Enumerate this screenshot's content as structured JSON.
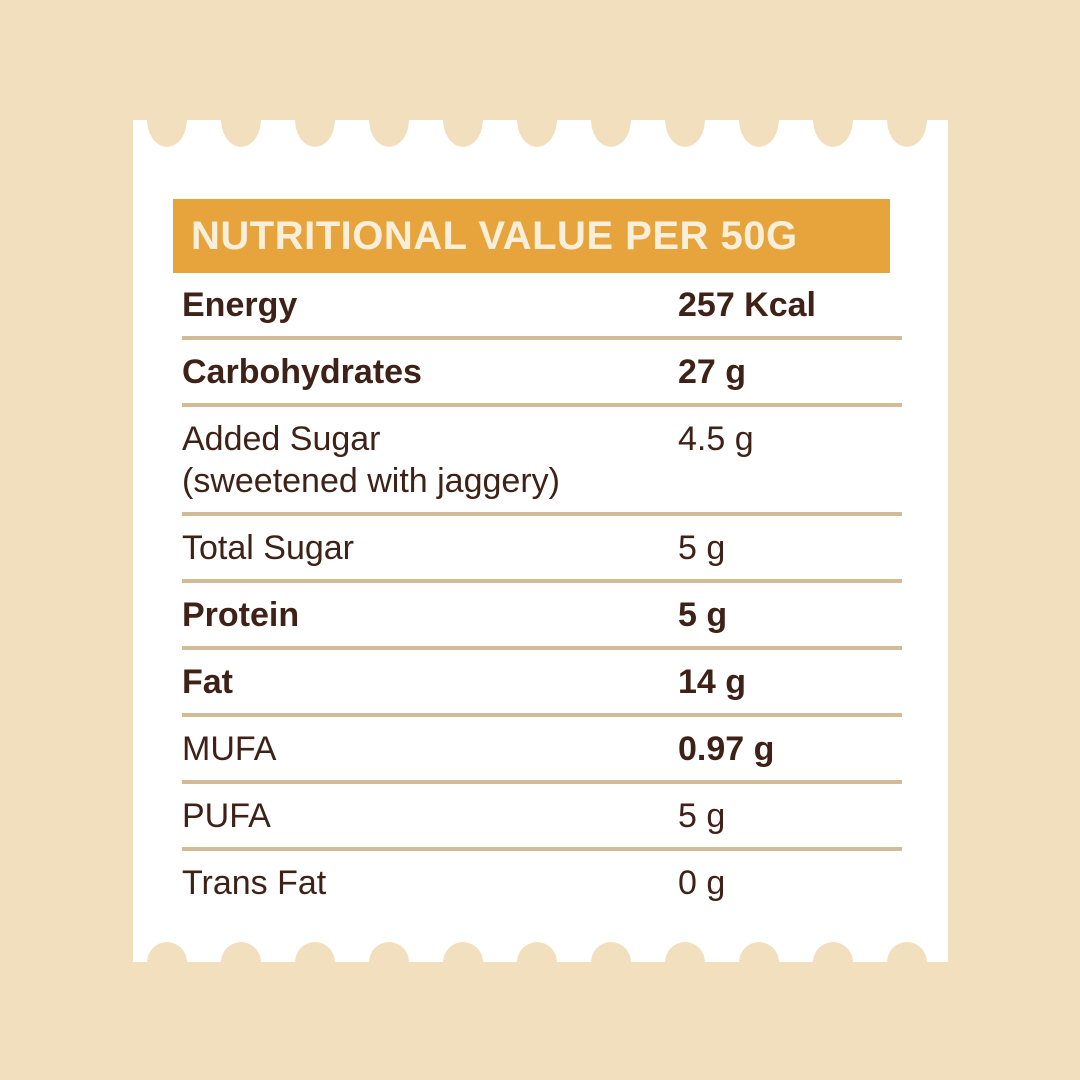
{
  "page": {
    "background_color": "#f1dfbd"
  },
  "card": {
    "background_color": "#ffffff",
    "edge_style": "scalloped-receipt"
  },
  "header": {
    "title": "NUTRITIONAL VALUE PER 50G",
    "background_color": "#e8a43c",
    "text_color": "#f8efda"
  },
  "table": {
    "text_color": "#3e2217",
    "divider_color": "#d2bb97",
    "rows": [
      {
        "label": "Energy",
        "value": "257 Kcal"
      },
      {
        "label": "Carbohydrates",
        "value": "27 g"
      },
      {
        "label": "Added Sugar",
        "sublabel": "(sweetened with jaggery)",
        "value": "4.5 g"
      },
      {
        "label": "Total Sugar",
        "value": "5 g"
      },
      {
        "label": "Protein",
        "value": "5 g"
      },
      {
        "label": "Fat",
        "value": "14 g"
      },
      {
        "label": "MUFA",
        "value": "0.97 g"
      },
      {
        "label": "PUFA",
        "value": "5 g"
      },
      {
        "label": "Trans Fat",
        "value": "0 g"
      }
    ]
  }
}
